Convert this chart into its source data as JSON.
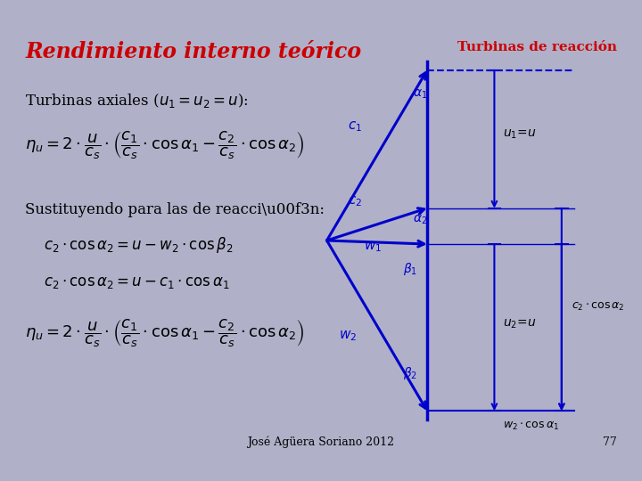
{
  "bg_outer": "#b0b0c8",
  "bg_inner": "#e8eef0",
  "title_text": "Rendimiento interno teórico",
  "title_color": "#cc0000",
  "turbinas_label": "Turbinas de reacción",
  "turbinas_color": "#cc0000",
  "footer_text": "José Agüera Soriano 2012",
  "page_num": "77",
  "blue": "#0000cc"
}
